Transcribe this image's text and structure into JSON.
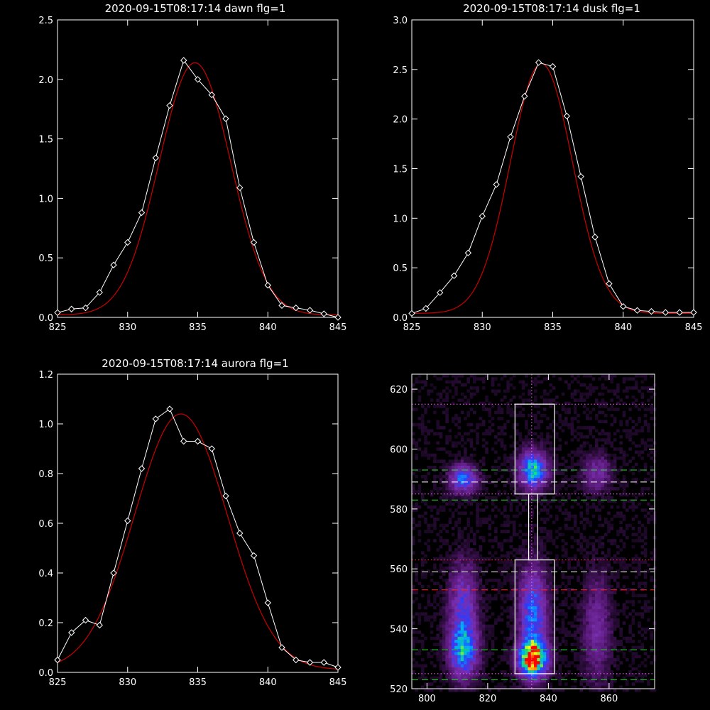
{
  "chart_data": [
    {
      "type": "line",
      "title": "2020-09-15T08:17:14 dawn flg=1",
      "xlim": [
        825,
        845
      ],
      "ylim": [
        0,
        2.5
      ],
      "xticks": [
        825,
        830,
        835,
        840,
        845
      ],
      "yticks": [
        0.0,
        0.5,
        1.0,
        1.5,
        2.0,
        2.5
      ],
      "ytick_labels": [
        "0.0",
        "0.5",
        "1.0",
        "1.5",
        "2.0",
        "2.5"
      ],
      "series": [
        {
          "kind": "data",
          "color": "#ffffff",
          "x": [
            825,
            826,
            827,
            828,
            829,
            830,
            831,
            832,
            833,
            834,
            835,
            836,
            837,
            838,
            839,
            840,
            841,
            842,
            843,
            844,
            845
          ],
          "y": [
            0.04,
            0.07,
            0.08,
            0.21,
            0.44,
            0.63,
            0.88,
            1.34,
            1.78,
            2.16,
            2.0,
            1.87,
            1.67,
            1.09,
            0.63,
            0.27,
            0.1,
            0.08,
            0.06,
            0.03,
            0.0
          ]
        },
        {
          "kind": "gaussian_fit",
          "color": "#cc0000",
          "amplitude": 2.12,
          "center": 834.8,
          "sigma": 2.55,
          "offset": 0.02
        }
      ]
    },
    {
      "type": "line",
      "title": "2020-09-15T08:17:14 dusk flg=1",
      "xlim": [
        825,
        845
      ],
      "ylim": [
        0,
        3.0
      ],
      "xticks": [
        825,
        830,
        835,
        840,
        845
      ],
      "yticks": [
        0.0,
        0.5,
        1.0,
        1.5,
        2.0,
        2.5,
        3.0
      ],
      "ytick_labels": [
        "0.0",
        "0.5",
        "1.0",
        "1.5",
        "2.0",
        "2.5",
        "3.0"
      ],
      "series": [
        {
          "kind": "data",
          "color": "#ffffff",
          "x": [
            825,
            826,
            827,
            828,
            829,
            830,
            831,
            832,
            833,
            834,
            835,
            836,
            837,
            838,
            839,
            840,
            841,
            842,
            843,
            844,
            845
          ],
          "y": [
            0.04,
            0.09,
            0.25,
            0.42,
            0.65,
            1.02,
            1.34,
            1.82,
            2.23,
            2.57,
            2.53,
            2.03,
            1.42,
            0.81,
            0.34,
            0.11,
            0.07,
            0.06,
            0.05,
            0.05,
            0.05
          ]
        },
        {
          "kind": "gaussian_fit",
          "color": "#cc0000",
          "amplitude": 2.52,
          "center": 834.2,
          "sigma": 2.2,
          "offset": 0.04
        }
      ]
    },
    {
      "type": "line",
      "title": "2020-09-15T08:17:14 aurora flg=1",
      "xlim": [
        825,
        845
      ],
      "ylim": [
        0,
        1.2
      ],
      "xticks": [
        825,
        830,
        835,
        840,
        845
      ],
      "yticks": [
        0.0,
        0.2,
        0.4,
        0.6,
        0.8,
        1.0,
        1.2
      ],
      "ytick_labels": [
        "0.0",
        "0.2",
        "0.4",
        "0.6",
        "0.8",
        "1.0",
        "1.2"
      ],
      "series": [
        {
          "kind": "data",
          "color": "#ffffff",
          "x": [
            825,
            826,
            827,
            828,
            829,
            830,
            831,
            832,
            833,
            834,
            835,
            836,
            837,
            838,
            839,
            840,
            841,
            842,
            843,
            844,
            845
          ],
          "y": [
            0.05,
            0.16,
            0.21,
            0.19,
            0.4,
            0.61,
            0.82,
            1.02,
            1.06,
            0.93,
            0.93,
            0.9,
            0.71,
            0.56,
            0.47,
            0.28,
            0.1,
            0.05,
            0.04,
            0.04,
            0.02
          ]
        },
        {
          "kind": "gaussian_fit",
          "color": "#cc0000",
          "amplitude": 1.03,
          "center": 833.8,
          "sigma": 3.3,
          "offset": 0.01
        }
      ]
    },
    {
      "type": "heatmap",
      "title": "",
      "xlim": [
        795,
        875
      ],
      "ylim": [
        520,
        625
      ],
      "xticks": [
        800,
        820,
        840,
        860
      ],
      "yticks": [
        520,
        540,
        560,
        580,
        600,
        620
      ],
      "colormap": [
        "#000000",
        "#5a1a7a",
        "#7a2fb0",
        "#2a3cff",
        "#00a8ff",
        "#18e070",
        "#ffff00",
        "#ff0000"
      ],
      "blobs": [
        {
          "x": 835,
          "y": 530,
          "sx": 3,
          "sy": 4,
          "amp": 1.0
        },
        {
          "x": 835,
          "y": 545,
          "sx": 3,
          "sy": 10,
          "amp": 0.45
        },
        {
          "x": 812,
          "y": 533,
          "sx": 3,
          "sy": 6,
          "amp": 0.55
        },
        {
          "x": 812,
          "y": 548,
          "sx": 3,
          "sy": 9,
          "amp": 0.32
        },
        {
          "x": 835,
          "y": 593,
          "sx": 3,
          "sy": 4,
          "amp": 0.62
        },
        {
          "x": 812,
          "y": 590,
          "sx": 3,
          "sy": 3,
          "amp": 0.45
        },
        {
          "x": 856,
          "y": 592,
          "sx": 3,
          "sy": 4,
          "amp": 0.22
        },
        {
          "x": 856,
          "y": 540,
          "sx": 3,
          "sy": 12,
          "amp": 0.2
        }
      ],
      "boxes": [
        {
          "x0": 829,
          "x1": 842,
          "y0": 585,
          "y1": 615
        },
        {
          "x0": 829,
          "x1": 842,
          "y0": 525,
          "y1": 563
        },
        {
          "x0": 833.5,
          "x1": 836.5,
          "y0": 563,
          "y1": 585
        }
      ],
      "hlines": [
        {
          "y": 615,
          "color": "#ff66ff",
          "style": "dotted"
        },
        {
          "y": 593,
          "color": "#22dd22",
          "style": "dashed"
        },
        {
          "y": 589,
          "color": "#ffffff",
          "style": "dashed"
        },
        {
          "y": 585,
          "color": "#ff66ff",
          "style": "dotted"
        },
        {
          "y": 583,
          "color": "#22dd22",
          "style": "dashed"
        },
        {
          "y": 563,
          "color": "#ff3333",
          "style": "dotted"
        },
        {
          "y": 559,
          "color": "#ffffff",
          "style": "dashed"
        },
        {
          "y": 553,
          "color": "#ff2222",
          "style": "dashed"
        },
        {
          "y": 533,
          "color": "#22dd22",
          "style": "dashed"
        },
        {
          "y": 525,
          "color": "#ff66ff",
          "style": "dotted"
        },
        {
          "y": 523,
          "color": "#22dd22",
          "style": "dashed"
        }
      ],
      "vlines": [
        {
          "x": 834.5,
          "color": "#ff66ff",
          "style": "dotted"
        }
      ]
    }
  ]
}
